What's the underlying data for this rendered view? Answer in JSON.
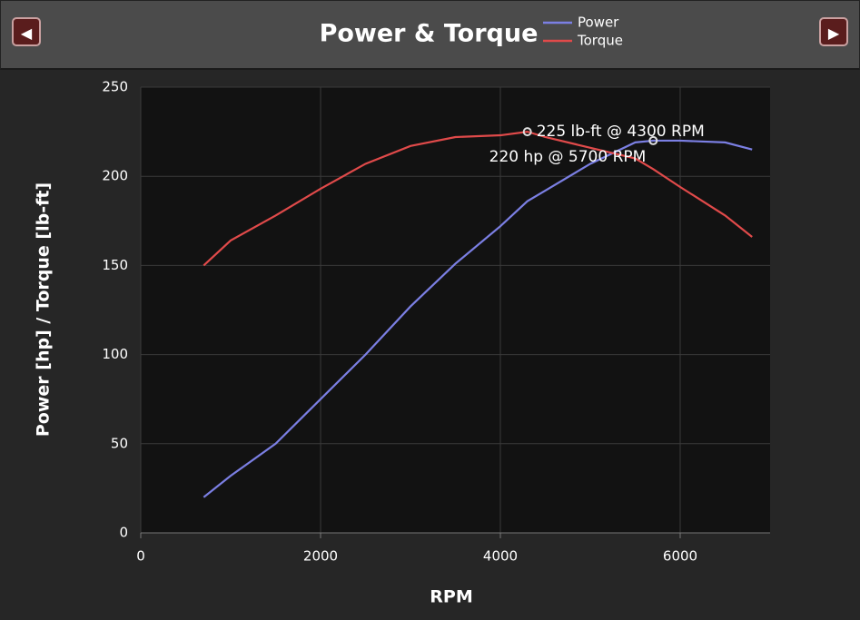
{
  "nav": {
    "prev": "◀",
    "next": "▶"
  },
  "chart_data": {
    "type": "line",
    "title": "Power & Torque",
    "x_label": "RPM",
    "y_label": "Power [hp] / Torque [lb-ft]",
    "x": [
      700,
      1000,
      1500,
      2000,
      2500,
      3000,
      3500,
      4000,
      4300,
      4500,
      5000,
      5500,
      5700,
      6000,
      6500,
      6800
    ],
    "series": [
      {
        "name": "Power",
        "color": "#7b7fe3",
        "values": [
          20,
          32,
          50,
          75,
          100,
          127,
          151,
          172,
          186,
          192,
          207,
          219,
          220,
          220,
          219,
          215
        ]
      },
      {
        "name": "Torque",
        "color": "#e04a4a",
        "values": [
          150,
          164,
          178,
          193,
          207,
          217,
          222,
          223,
          225,
          222,
          216,
          210,
          204,
          194,
          178,
          166
        ]
      }
    ],
    "annotations": [
      {
        "text": "225 lb-ft @ 4300 RPM",
        "x": 4300,
        "y": 225
      },
      {
        "text": "220 hp @ 5700 RPM",
        "x": 5700,
        "y": 220
      }
    ],
    "xlim": [
      0,
      7000
    ],
    "xticks": [
      0,
      2000,
      4000,
      6000
    ],
    "ylim": [
      0,
      250
    ],
    "yticks": [
      0,
      50,
      100,
      150,
      200,
      250
    ],
    "grid": true
  }
}
